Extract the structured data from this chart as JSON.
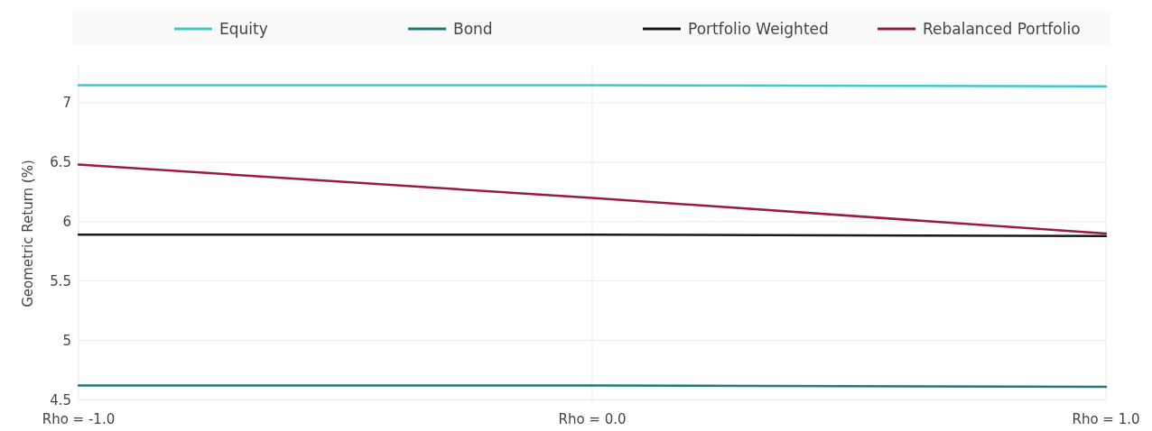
{
  "chart_data": {
    "type": "line",
    "ylabel": "Geometric Return (%)",
    "categories": [
      "Rho = -1.0",
      "Rho = 0.0",
      "Rho = 1.0"
    ],
    "series": [
      {
        "name": "Equity",
        "color": "#3ec9cc",
        "values": [
          7.15,
          7.15,
          7.14
        ]
      },
      {
        "name": "Bond",
        "color": "#1f7a78",
        "values": [
          4.62,
          4.62,
          4.61
        ]
      },
      {
        "name": "Portfolio Weighted",
        "color": "#1a1a1a",
        "values": [
          5.89,
          5.89,
          5.88
        ]
      },
      {
        "name": "Rebalanced Portfolio",
        "color": "#9b1b40",
        "values": [
          6.48,
          6.2,
          5.9
        ]
      }
    ],
    "ylim": [
      4.48,
      7.32
    ],
    "yticks": [
      {
        "value": 4.5,
        "label": "4.5"
      },
      5,
      5.5,
      6,
      6.5,
      7
    ],
    "grid": true,
    "legend": "top",
    "marker": "none",
    "line_style": "solid"
  }
}
